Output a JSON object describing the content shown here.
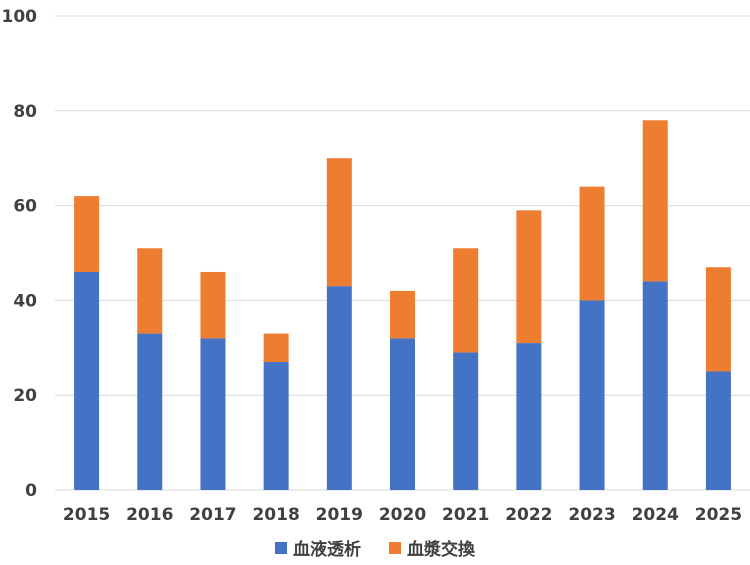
{
  "chart_data": {
    "type": "bar",
    "stacked": true,
    "categories": [
      "2015",
      "2016",
      "2017",
      "2018",
      "2019",
      "2020",
      "2021",
      "2022",
      "2023",
      "2024",
      "2025"
    ],
    "series": [
      {
        "name": "血液透析",
        "color": "#4472C4",
        "values": [
          46,
          33,
          32,
          27,
          43,
          32,
          29,
          31,
          40,
          44,
          25
        ]
      },
      {
        "name": "血漿交換",
        "color": "#ED7D31",
        "values": [
          16,
          18,
          14,
          6,
          27,
          10,
          22,
          28,
          24,
          34,
          22
        ]
      }
    ],
    "ylim": [
      0,
      100
    ],
    "yticks": [
      0,
      20,
      40,
      60,
      80,
      100
    ],
    "grid": true,
    "legend": "bottom",
    "title": "",
    "xlabel": "",
    "ylabel": ""
  }
}
